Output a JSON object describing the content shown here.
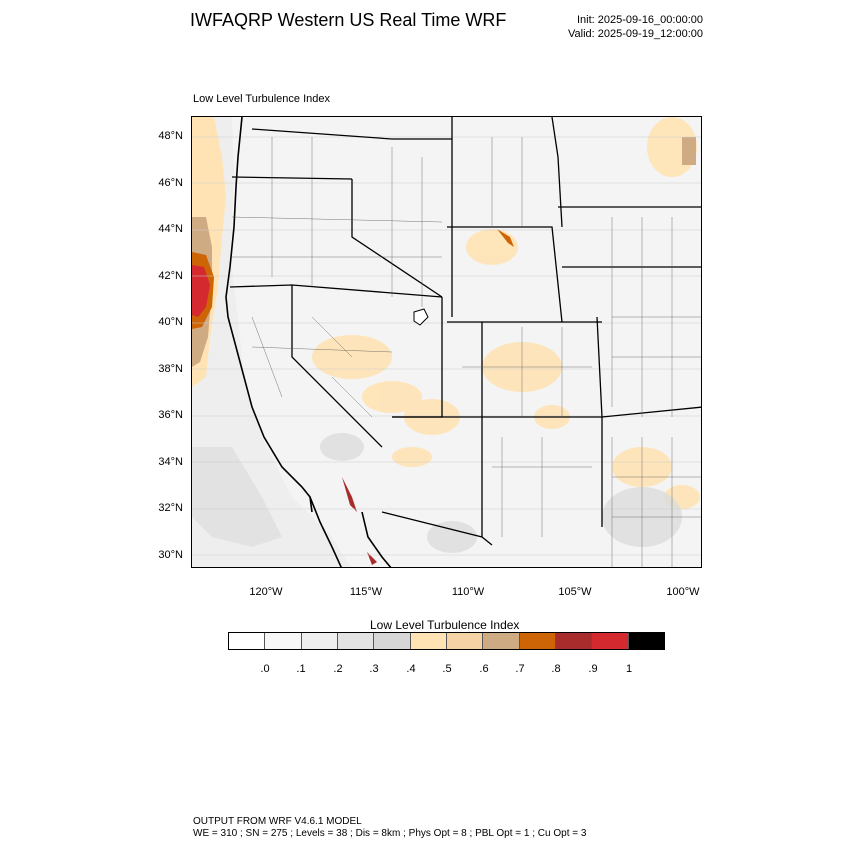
{
  "header": {
    "title": "IWFAQRP Western US Real Time WRF",
    "init": "Init: 2025-09-16_00:00:00",
    "valid": "Valid: 2025-09-19_12:00:00"
  },
  "map": {
    "subtitle": "Low Level Turbulence Index",
    "lat_labels": [
      "48°N",
      "46°N",
      "44°N",
      "42°N",
      "40°N",
      "38°N",
      "36°N",
      "34°N",
      "32°N",
      "30°N"
    ],
    "lon_labels": [
      "120°W",
      "115°W",
      "110°W",
      "105°W",
      "100°W"
    ],
    "lat_values": [
      48,
      46,
      44,
      42,
      40,
      38,
      36,
      34,
      32,
      30
    ],
    "lon_values": [
      -120,
      -115,
      -110,
      -105,
      -100
    ]
  },
  "colorbar": {
    "title": "Low Level Turbulence Index",
    "colors": [
      "#ffffff",
      "#f7f7f7",
      "#efefef",
      "#e3e3e3",
      "#d6d6d6",
      "#ffe3b4",
      "#f6d3a5",
      "#cfab84",
      "#cd6405",
      "#a82c2c",
      "#d42a2f",
      "#000000"
    ],
    "labels": [
      ".0",
      ".1",
      ".2",
      ".3",
      ".4",
      ".5",
      ".6",
      ".7",
      ".8",
      ".9",
      "1"
    ]
  },
  "footer": {
    "line1": "OUTPUT FROM WRF V4.6.1 MODEL",
    "line2": "WE = 310 ; SN = 275 ; Levels = 38 ; Dis = 8km ; Phys Opt = 8 ; PBL Opt = 1 ; Cu Opt = 3"
  }
}
